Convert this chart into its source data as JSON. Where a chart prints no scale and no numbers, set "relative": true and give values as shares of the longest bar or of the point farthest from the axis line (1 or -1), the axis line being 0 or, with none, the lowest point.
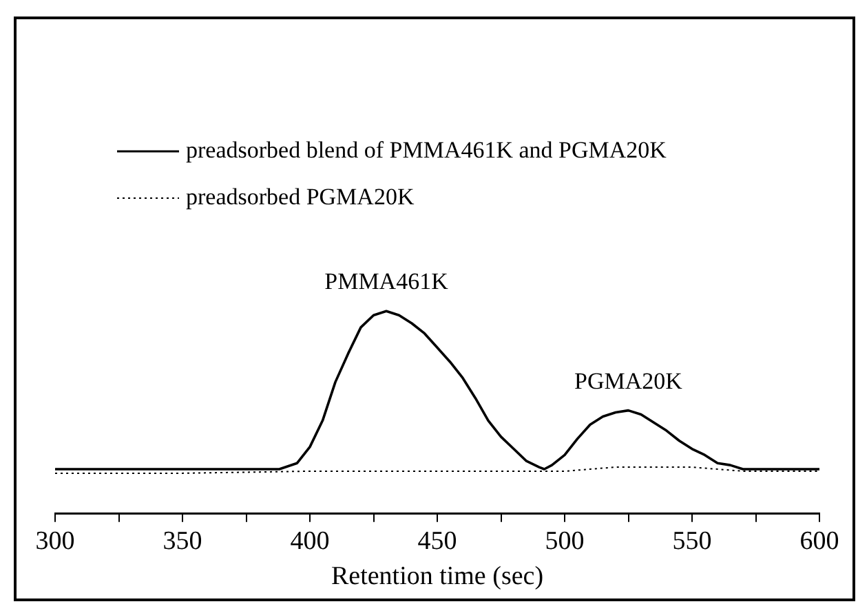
{
  "chart_data": {
    "type": "line",
    "xlabel": "Retention time (sec)",
    "relative": true,
    "xlim": [
      300,
      600
    ],
    "xticks": [
      300,
      {
        "value": 325,
        "label": null
      },
      350,
      {
        "value": 375,
        "label": null
      },
      400,
      {
        "value": 425,
        "label": null
      },
      450,
      {
        "value": 475,
        "label": null
      },
      500,
      {
        "value": 525,
        "label": null
      },
      550,
      {
        "value": 575,
        "label": null
      },
      600
    ],
    "legend": "top left",
    "grid": false,
    "marker": "none",
    "annotations": [
      {
        "text": "PMMA461K",
        "x": 430,
        "y": 1
      },
      {
        "text": "PGMA20K",
        "x": 525,
        "y": 0.51
      }
    ],
    "series": [
      {
        "name": "preadsorbed blend of PMMA461K and PGMA20K",
        "color": "#000000",
        "line_style": "solid",
        "x": [
          300,
          380,
          388,
          395,
          400,
          405,
          410,
          415,
          420,
          425,
          430,
          435,
          440,
          445,
          450,
          455,
          460,
          465,
          470,
          475,
          480,
          485,
          490,
          492,
          495,
          500,
          505,
          510,
          515,
          520,
          525,
          530,
          535,
          540,
          545,
          550,
          555,
          560,
          565,
          570,
          575,
          580,
          600
        ],
        "values": [
          0.22,
          0.22,
          0.22,
          0.25,
          0.33,
          0.46,
          0.65,
          0.79,
          0.92,
          0.98,
          1,
          0.98,
          0.94,
          0.89,
          0.82,
          0.75,
          0.67,
          0.57,
          0.46,
          0.38,
          0.32,
          0.26,
          0.23,
          0.22,
          0.24,
          0.29,
          0.37,
          0.44,
          0.48,
          0.5,
          0.51,
          0.49,
          0.45,
          0.41,
          0.36,
          0.32,
          0.29,
          0.25,
          0.24,
          0.22,
          0.22,
          0.22,
          0.22
        ]
      },
      {
        "name": "preadsorbed PGMA20K",
        "color": "#000000",
        "line_style": "dotted",
        "x": [
          300,
          350,
          400,
          450,
          490,
          500,
          510,
          520,
          530,
          540,
          550,
          560,
          570,
          580,
          600
        ],
        "values": [
          0.2,
          0.2,
          0.21,
          0.21,
          0.21,
          0.21,
          0.22,
          0.23,
          0.23,
          0.23,
          0.23,
          0.22,
          0.21,
          0.21,
          0.21
        ]
      }
    ]
  }
}
